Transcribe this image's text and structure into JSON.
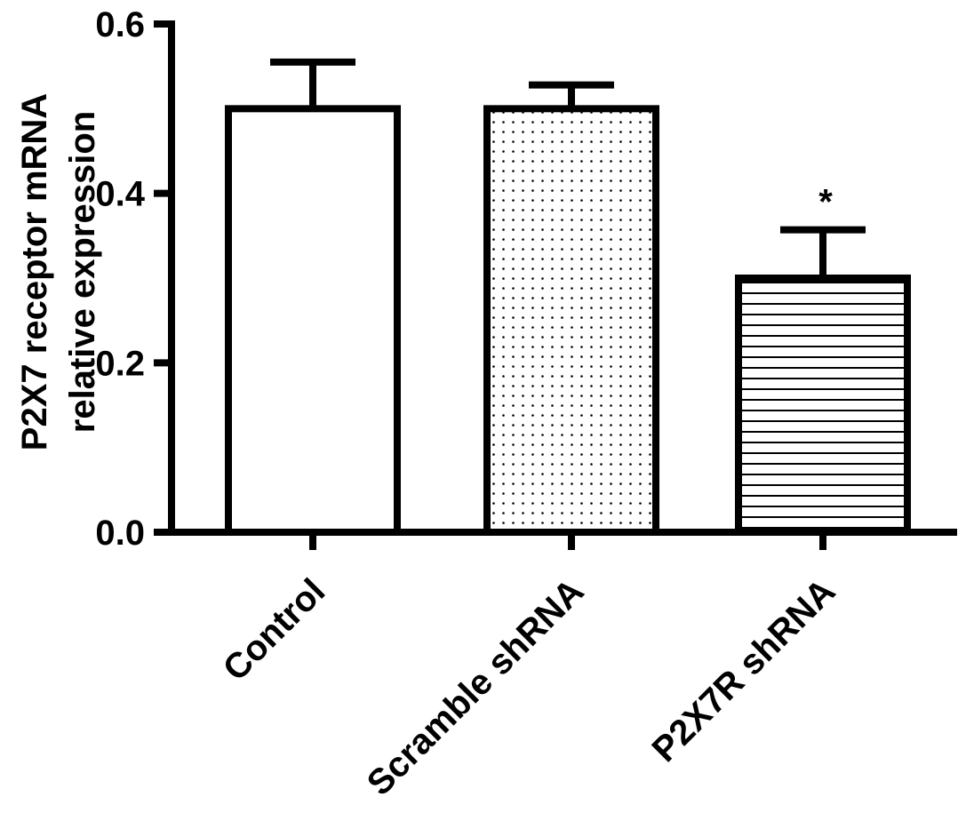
{
  "chart_data": {
    "type": "bar",
    "title": "",
    "xlabel": "",
    "ylabel_lines": [
      "P2X7 receptor mRNA",
      "relative expression"
    ],
    "ylim": [
      0,
      0.6
    ],
    "yticks": [
      "0.0",
      "0.2",
      "0.4",
      "0.6"
    ],
    "categories": [
      "Control",
      "Scramble shRNA",
      "P2X7R shRNA"
    ],
    "values": [
      0.5,
      0.5,
      0.3
    ],
    "error_upper": [
      0.055,
      0.028,
      0.057
    ],
    "fill_patterns": [
      "none",
      "dots",
      "horizontal-lines"
    ],
    "annotations": [
      "",
      "",
      "*"
    ],
    "grid": false,
    "colors": {
      "stroke": "#000000",
      "fill": "#ffffff"
    }
  }
}
